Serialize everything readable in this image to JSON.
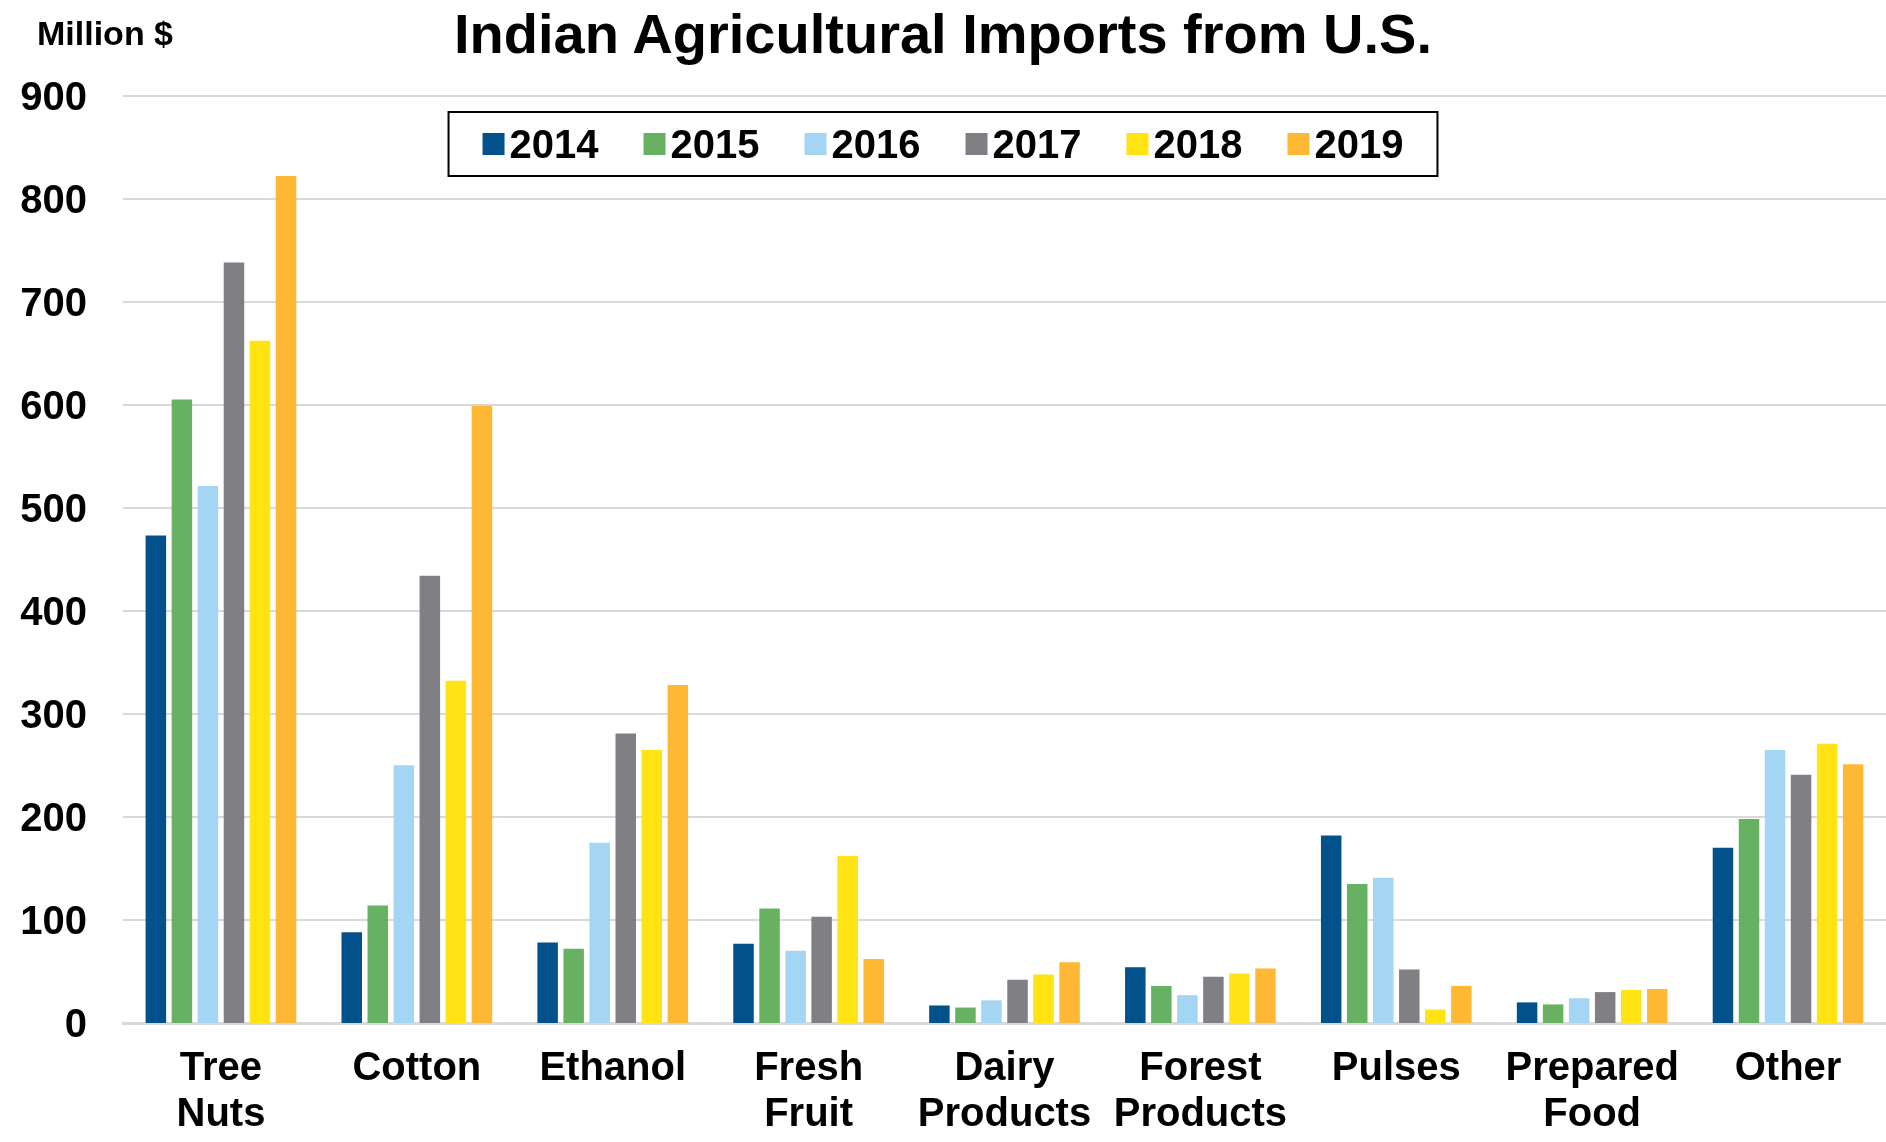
{
  "chart_data": {
    "type": "bar",
    "title": "Indian Agricultural Imports from U.S.",
    "ylabel": "Million $",
    "categories": [
      "Tree Nuts",
      "Cotton",
      "Ethanol",
      "Fresh Fruit",
      "Dairy Products",
      "Forest Products",
      "Pulses",
      "Prepared Food",
      "Other"
    ],
    "series": [
      {
        "name": "2014",
        "color": "#03518a",
        "values": [
          473,
          88,
          78,
          77,
          17,
          54,
          182,
          20,
          170
        ]
      },
      {
        "name": "2015",
        "color": "#67b262",
        "values": [
          605,
          114,
          72,
          111,
          15,
          36,
          135,
          18,
          198
        ]
      },
      {
        "name": "2016",
        "color": "#a4d6f3",
        "values": [
          521,
          250,
          175,
          70,
          22,
          27,
          141,
          24,
          265
        ]
      },
      {
        "name": "2017",
        "color": "#808084",
        "values": [
          738,
          434,
          281,
          103,
          42,
          45,
          52,
          30,
          241
        ]
      },
      {
        "name": "2018",
        "color": "#ffe313",
        "values": [
          662,
          332,
          265,
          162,
          47,
          48,
          13,
          32,
          271
        ]
      },
      {
        "name": "2019",
        "color": "#ffb834",
        "values": [
          822,
          599,
          328,
          62,
          59,
          53,
          36,
          33,
          251
        ]
      }
    ],
    "ylim": [
      0,
      900
    ],
    "yticks": [
      0,
      100,
      200,
      300,
      400,
      500,
      600,
      700,
      800,
      900
    ],
    "grid": "y",
    "legend": "top"
  }
}
